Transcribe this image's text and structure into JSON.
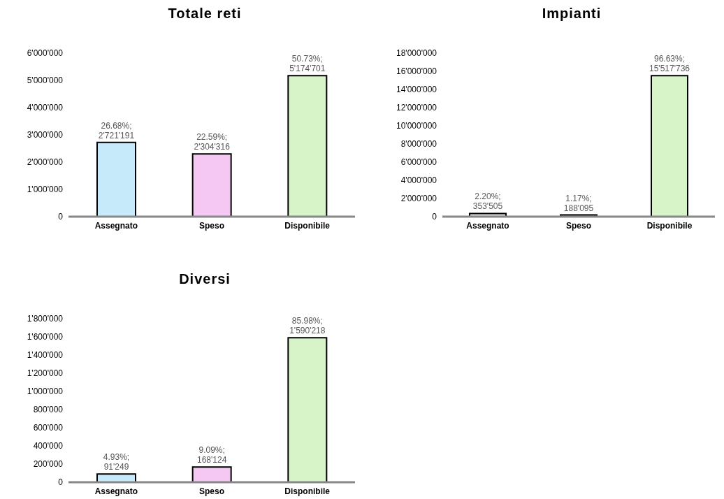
{
  "chart_data": [
    {
      "type": "bar",
      "title": "Totale reti",
      "categories": [
        "Assegnato",
        "Speso",
        "Disponibile"
      ],
      "values": [
        2721191,
        2304316,
        5174701
      ],
      "colors": [
        "#c6eafa",
        "#f4c8f2",
        "#d6f4c8"
      ],
      "ylim": [
        0,
        6000000
      ],
      "yticks": [
        {
          "value": 0,
          "label": "0"
        },
        {
          "value": 1000000,
          "label": "1'000'000"
        },
        {
          "value": 2000000,
          "label": "2'000'000"
        },
        {
          "value": 3000000,
          "label": "3'000'000"
        },
        {
          "value": 4000000,
          "label": "4'000'000"
        },
        {
          "value": 5000000,
          "label": "5'000'000"
        },
        {
          "value": 6000000,
          "label": "6'000'000"
        }
      ],
      "value_labels": [
        "26.68%;\n2'721'191",
        "22.59%;\n2'304'316",
        "50.73%;\n5'174'701"
      ],
      "grid": false,
      "legend": false
    },
    {
      "type": "bar",
      "title": "Impianti",
      "categories": [
        "Assegnato",
        "Speso",
        "Disponibile"
      ],
      "values": [
        353505,
        188095,
        15517736
      ],
      "colors": [
        "#dcdcdc",
        "#606060",
        "#d6f4c8"
      ],
      "ylim": [
        0,
        18000000
      ],
      "yticks": [
        {
          "value": 0,
          "label": "0"
        },
        {
          "value": 2000000,
          "label": "2'000'000"
        },
        {
          "value": 4000000,
          "label": "4'000'000"
        },
        {
          "value": 6000000,
          "label": "6'000'000"
        },
        {
          "value": 8000000,
          "label": "8'000'000"
        },
        {
          "value": 10000000,
          "label": "10'000'000"
        },
        {
          "value": 12000000,
          "label": "12'000'000"
        },
        {
          "value": 14000000,
          "label": "14'000'000"
        },
        {
          "value": 16000000,
          "label": "16'000'000"
        },
        {
          "value": 18000000,
          "label": "18'000'000"
        }
      ],
      "value_labels": [
        "2.20%;\n353'505",
        "1.17%;\n188'095",
        "96.63%;\n15'517'736"
      ],
      "grid": false,
      "legend": false
    },
    {
      "type": "bar",
      "title": "Diversi",
      "categories": [
        "Assegnato",
        "Speso",
        "Disponibile"
      ],
      "values": [
        91249,
        168124,
        1590218
      ],
      "colors": [
        "#c6eafa",
        "#f4c8f2",
        "#d6f4c8"
      ],
      "ylim": [
        0,
        1800000
      ],
      "yticks": [
        {
          "value": 0,
          "label": "0"
        },
        {
          "value": 200000,
          "label": "200'000"
        },
        {
          "value": 400000,
          "label": "400'000"
        },
        {
          "value": 600000,
          "label": "600'000"
        },
        {
          "value": 800000,
          "label": "800'000"
        },
        {
          "value": 1000000,
          "label": "1'000'000"
        },
        {
          "value": 1200000,
          "label": "1'200'000"
        },
        {
          "value": 1400000,
          "label": "1'400'000"
        },
        {
          "value": 1600000,
          "label": "1'600'000"
        },
        {
          "value": 1800000,
          "label": "1'800'000"
        }
      ],
      "value_labels": [
        "4.93%;\n91'249",
        "9.09%;\n168'124",
        "85.98%;\n1'590'218"
      ],
      "grid": false,
      "legend": false
    }
  ]
}
